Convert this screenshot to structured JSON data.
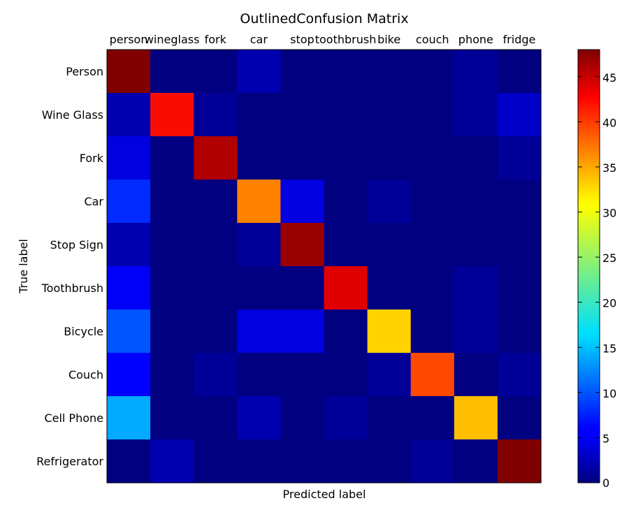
{
  "chart_data": {
    "type": "heatmap",
    "title": "OutlinedConfusion Matrix",
    "xlabel": "Predicted label",
    "ylabel": "True label",
    "x_categories": [
      "person",
      "wineglass",
      "fork",
      "car",
      "stop",
      "toothbrush",
      "bike",
      "couch",
      "phone",
      "fridge"
    ],
    "y_categories": [
      "Person",
      "Wine Glass",
      "Fork",
      "Car",
      "Stop Sign",
      "Toothbrush",
      "Bicycle",
      "Couch",
      "Cell Phone",
      "Refrigerator"
    ],
    "values": [
      [
        48,
        0,
        0,
        2,
        0,
        0,
        0,
        0,
        1,
        0
      ],
      [
        2,
        43,
        1,
        0,
        0,
        0,
        0,
        0,
        1,
        3
      ],
      [
        4,
        0,
        46,
        0,
        0,
        0,
        0,
        0,
        0,
        1
      ],
      [
        8,
        0,
        0,
        37,
        4,
        0,
        1,
        0,
        0,
        0
      ],
      [
        2,
        0,
        0,
        1,
        47,
        0,
        0,
        0,
        0,
        0
      ],
      [
        5,
        0,
        0,
        0,
        0,
        44,
        0,
        0,
        1,
        0
      ],
      [
        10,
        0,
        0,
        4,
        4,
        0,
        33,
        0,
        1,
        0
      ],
      [
        6,
        0,
        1,
        0,
        0,
        0,
        1,
        40,
        0,
        1
      ],
      [
        14,
        0,
        0,
        2,
        0,
        1,
        0,
        0,
        34,
        0
      ],
      [
        0,
        2,
        0,
        0,
        0,
        0,
        0,
        1,
        0,
        48
      ]
    ],
    "colorbar": {
      "min": 0,
      "max": 48,
      "ticks": [
        0,
        5,
        10,
        15,
        20,
        25,
        30,
        35,
        40,
        45
      ],
      "colormap": "jet"
    },
    "grid": false
  }
}
